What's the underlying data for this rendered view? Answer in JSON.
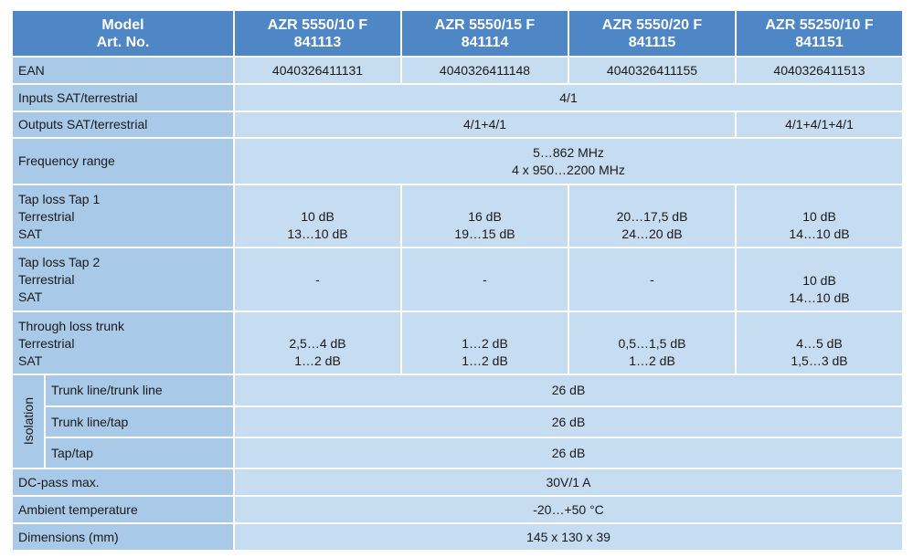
{
  "header": [
    [
      "Model",
      "Art. No."
    ],
    [
      "AZR 5550/10 F",
      "841113"
    ],
    [
      "AZR 5550/15 F",
      "841114"
    ],
    [
      "AZR 5550/20 F",
      "841115"
    ],
    [
      "AZR 55250/10 F",
      "841151"
    ]
  ],
  "rows": [
    {
      "label": [
        "EAN"
      ],
      "cells": [
        [
          "4040326411131"
        ],
        [
          "4040326411148"
        ],
        [
          "4040326411155"
        ],
        [
          "4040326411513"
        ]
      ]
    },
    {
      "label": [
        "Inputs SAT/terrestrial"
      ],
      "cells": [
        [
          "4/1"
        ]
      ]
    },
    {
      "label": [
        "Outputs SAT/terrestrial"
      ],
      "cells": [
        [
          "4/1+4/1"
        ],
        [
          "4/1+4/1+4/1"
        ]
      ]
    },
    {
      "label": [
        "Frequency range"
      ],
      "cells": [
        [
          "5…862 MHz",
          "4 x 950…2200 MHz"
        ]
      ]
    },
    {
      "label": [
        "Tap loss Tap 1",
        "Terrestrial",
        "SAT"
      ],
      "cells": [
        [
          "10 dB",
          "13…10 dB"
        ],
        [
          "16 dB",
          "19…15 dB"
        ],
        [
          "20…17,5 dB",
          "24…20 dB"
        ],
        [
          "10 dB",
          "14…10 dB"
        ]
      ]
    },
    {
      "label": [
        "Tap loss Tap 2",
        "Terrestrial",
        "SAT"
      ],
      "cells": [
        [
          "-"
        ],
        [
          "-"
        ],
        [
          "-"
        ],
        [
          "10 dB",
          "14…10 dB"
        ]
      ]
    },
    {
      "label": [
        "Through loss trunk",
        "Terrestrial",
        "SAT"
      ],
      "cells": [
        [
          "2,5…4 dB",
          "1…2 dB"
        ],
        [
          "1…2 dB",
          "1…2 dB"
        ],
        [
          "0,5…1,5 dB",
          "1…2 dB"
        ],
        [
          "4…5 dB",
          "1,5…3 dB"
        ]
      ]
    },
    {
      "group": "Isolation",
      "items": [
        {
          "label": "Trunk line/trunk line",
          "value": "26 dB"
        },
        {
          "label": "Trunk line/tap",
          "value": "26 dB"
        },
        {
          "label": "Tap/tap",
          "value": "26 dB"
        }
      ]
    },
    {
      "label": [
        "DC-pass max."
      ],
      "cells": [
        [
          "30V/1 A"
        ]
      ]
    },
    {
      "label": [
        "Ambient temperature"
      ],
      "cells": [
        [
          "-20…+50 °C"
        ]
      ]
    },
    {
      "label": [
        "Dimensions (mm)"
      ],
      "cells": [
        [
          "145 x 130 x 39"
        ]
      ]
    }
  ]
}
